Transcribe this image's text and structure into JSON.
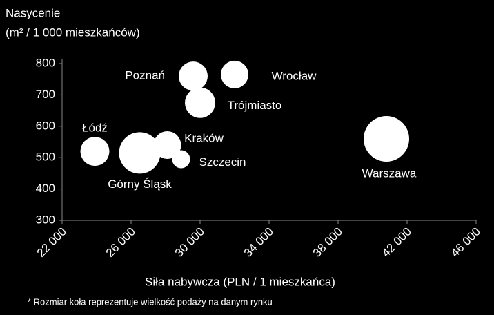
{
  "chart_data": {
    "type": "bubble",
    "y_label_line1": "Nasycenie",
    "y_label_line2": "(m² / 1 000 mieszkańców)",
    "x_label": "Siła nabywcza (PLN / 1 mieszkańca)",
    "footnote": "* Rozmiar koła reprezentuje wielkość podaży na danym rynku",
    "labels": [
      "Łódź",
      "Górny Śląsk",
      "Kraków",
      "Szczecin",
      "Poznań",
      "Trójmiasto",
      "Wrocław",
      "Warszawa"
    ],
    "x": [
      23900,
      26500,
      28100,
      28900,
      29600,
      30000,
      32000,
      40800
    ],
    "values": [
      520,
      515,
      540,
      495,
      760,
      675,
      765,
      560
    ],
    "sizes": [
      441,
      900,
      400,
      169,
      441,
      484,
      400,
      1089
    ],
    "color": "#ffffff",
    "xlim": [
      22000,
      46000
    ],
    "xticks": [
      {
        "value": 22000,
        "label": "22 000"
      },
      {
        "value": 26000,
        "label": "26 000"
      },
      {
        "value": 30000,
        "label": "30 000"
      },
      {
        "value": 34000,
        "label": "34 000"
      },
      {
        "value": 38000,
        "label": "38 000"
      },
      {
        "value": 42000,
        "label": "42 000"
      },
      {
        "value": 46000,
        "label": "46 000"
      }
    ],
    "ylim": [
      300,
      800
    ],
    "yticks": [
      300,
      400,
      500,
      600,
      700,
      800
    ]
  }
}
